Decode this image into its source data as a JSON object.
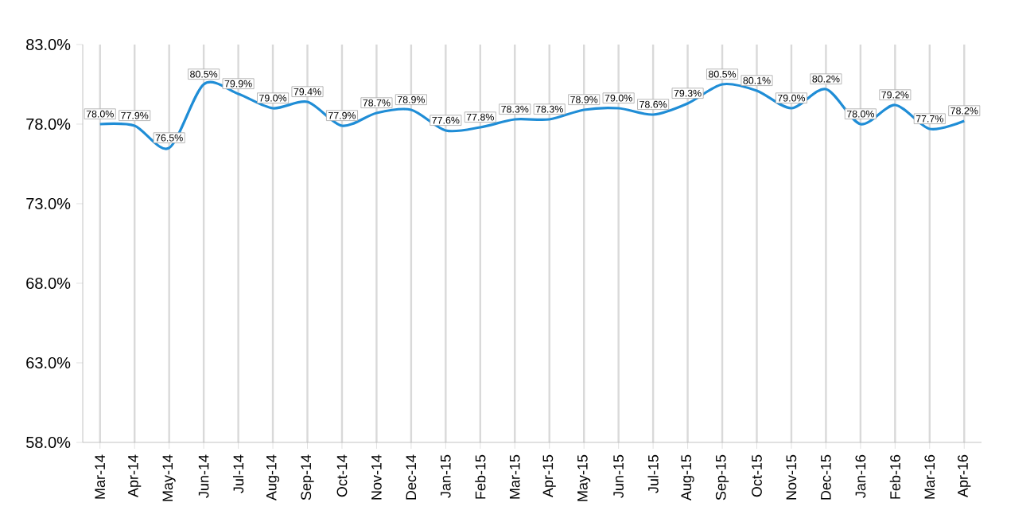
{
  "chart_data": {
    "type": "line",
    "categories": [
      "Mar-14",
      "Apr-14",
      "May-14",
      "Jun-14",
      "Jul-14",
      "Aug-14",
      "Sep-14",
      "Oct-14",
      "Nov-14",
      "Dec-14",
      "Jan-15",
      "Feb-15",
      "Mar-15",
      "Apr-15",
      "May-15",
      "Jun-15",
      "Jul-15",
      "Aug-15",
      "Sep-15",
      "Oct-15",
      "Nov-15",
      "Dec-15",
      "Jan-16",
      "Feb-16",
      "Mar-16",
      "Apr-16"
    ],
    "series": [
      {
        "color": "#1f8dd6",
        "values": [
          78.0,
          77.9,
          76.5,
          80.5,
          79.9,
          79.0,
          79.4,
          77.9,
          78.7,
          78.9,
          77.6,
          77.8,
          78.3,
          78.3,
          78.9,
          79.0,
          78.6,
          79.3,
          80.5,
          80.1,
          79.0,
          80.2,
          78.0,
          79.2,
          77.7,
          78.2
        ],
        "value_labels": [
          "78.0%",
          "77.9%",
          "76.5%",
          "80.5%",
          "79.9%",
          "79.0%",
          "79.4%",
          "77.9%",
          "78.7%",
          "78.9%",
          "77.6%",
          "77.8%",
          "78.3%",
          "78.3%",
          "78.9%",
          "79.0%",
          "78.6%",
          "79.3%",
          "80.5%",
          "80.1%",
          "79.0%",
          "80.2%",
          "78.0%",
          "79.2%",
          "77.7%",
          "78.2%"
        ]
      }
    ],
    "ylim": [
      58,
      83
    ],
    "yticks": [
      {
        "value": 58,
        "label": "58.0%"
      },
      {
        "value": 63,
        "label": "63.0%"
      },
      {
        "value": 68,
        "label": "68.0%"
      },
      {
        "value": 73,
        "label": "73.0%"
      },
      {
        "value": 78,
        "label": "78.0%"
      },
      {
        "value": 83,
        "label": "83.0%"
      }
    ],
    "grid": "x",
    "marker": "none",
    "line_style": "solid"
  }
}
